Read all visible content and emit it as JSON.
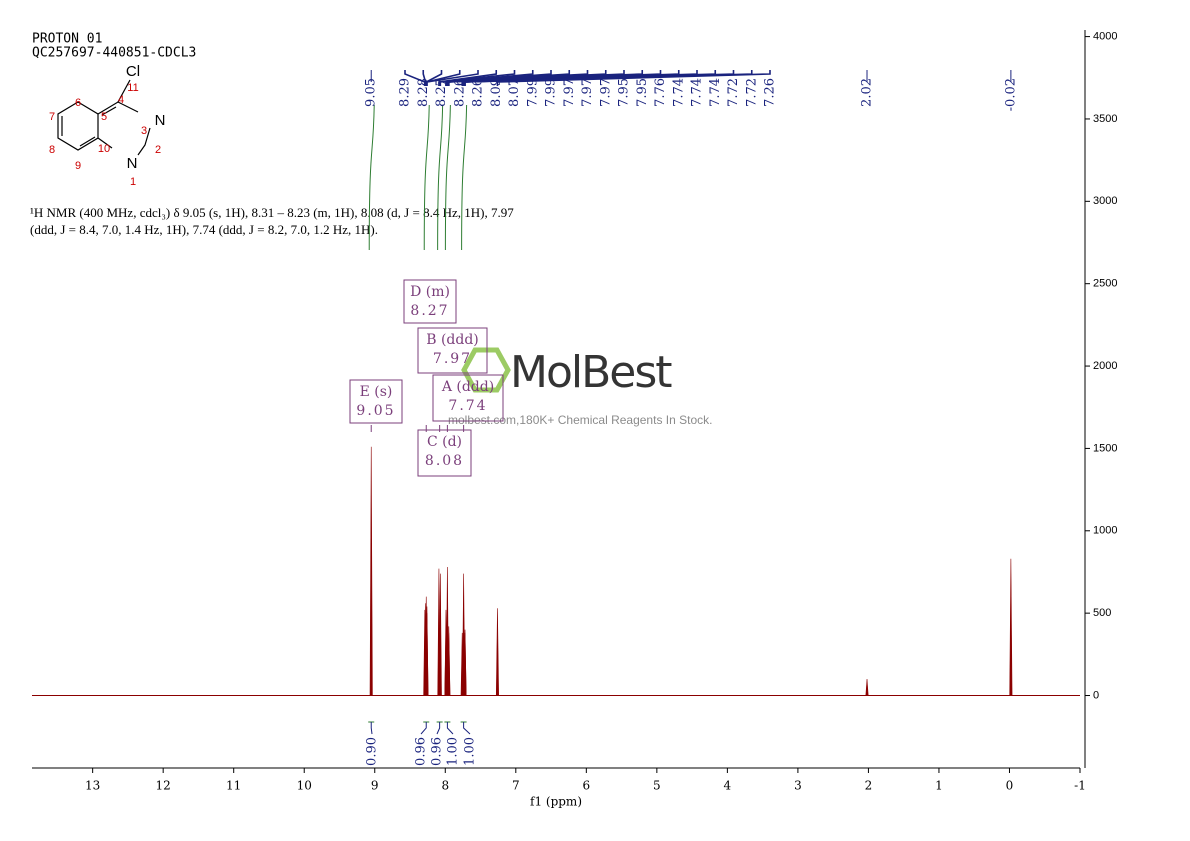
{
  "chart_data": {
    "type": "nmr",
    "title": [
      "PROTON 01",
      "QC257697-440851-CDCL3"
    ],
    "description": [
      "¹H NMR (400 MHz, cdcl₃) δ 9.05 (s, 1H), 8.31 – 8.23 (m, 1H), 8.08 (d, J = 8.4 Hz, 1H), 7.97",
      "(ddd, J = 8.4, 7.0, 1.4 Hz, 1H), 7.74 (ddd, J = 8.2, 7.0, 1.2 Hz, 1H)."
    ],
    "structure": {
      "atoms": [
        "Cl",
        "N",
        "N"
      ],
      "numbers": [
        11,
        6,
        4,
        7,
        5,
        3,
        8,
        10,
        2,
        9,
        1
      ]
    },
    "x_label": "f1 (ppm)",
    "x": [
      9.05,
      8.29,
      8.28,
      8.27,
      8.26,
      8.26,
      8.09,
      8.07,
      7.99,
      7.99,
      7.97,
      7.97,
      7.97,
      7.95,
      7.95,
      7.76,
      7.74,
      7.74,
      7.74,
      7.72,
      7.72,
      7.26,
      2.02,
      -0.02
    ],
    "values": [
      1510,
      520,
      560,
      600,
      540,
      500,
      770,
      740,
      430,
      520,
      780,
      500,
      400,
      380,
      420,
      380,
      740,
      520,
      440,
      400,
      380,
      530,
      100,
      830
    ],
    "color": "#8b0000",
    "label_color": "#1a237e",
    "integrals": {
      "x": [
        9.05,
        8.27,
        8.08,
        7.97,
        7.74
      ],
      "values": [
        0.9,
        0.96,
        0.96,
        1,
        1
      ],
      "value_labels": [
        "0.90",
        "0.96",
        "0.96",
        "1.00",
        "1.00"
      ],
      "color": "#2e7d32"
    },
    "multiplets": [
      {
        "label": "E (s)",
        "shift": 9.05
      },
      {
        "label": "D (m)",
        "shift": 8.27
      },
      {
        "label": "B (ddd)",
        "shift": 7.97
      },
      {
        "label": "A (ddd)",
        "shift": 7.74
      },
      {
        "label": "C (d)",
        "shift": 8.08
      }
    ],
    "watermark": {
      "name": "MolBest",
      "text": "molbest.com,180K+ Chemical Reagents In Stock."
    },
    "xlim": [
      13.86,
      -1
    ],
    "xticks": [
      13,
      12,
      11,
      10,
      9,
      8,
      7,
      6,
      5,
      4,
      3,
      2,
      1,
      0,
      -1
    ],
    "ylim": [
      -440,
      4040
    ],
    "yticks": [
      0,
      500,
      1000,
      1500,
      2000,
      2500,
      3000,
      3500,
      4000
    ]
  }
}
